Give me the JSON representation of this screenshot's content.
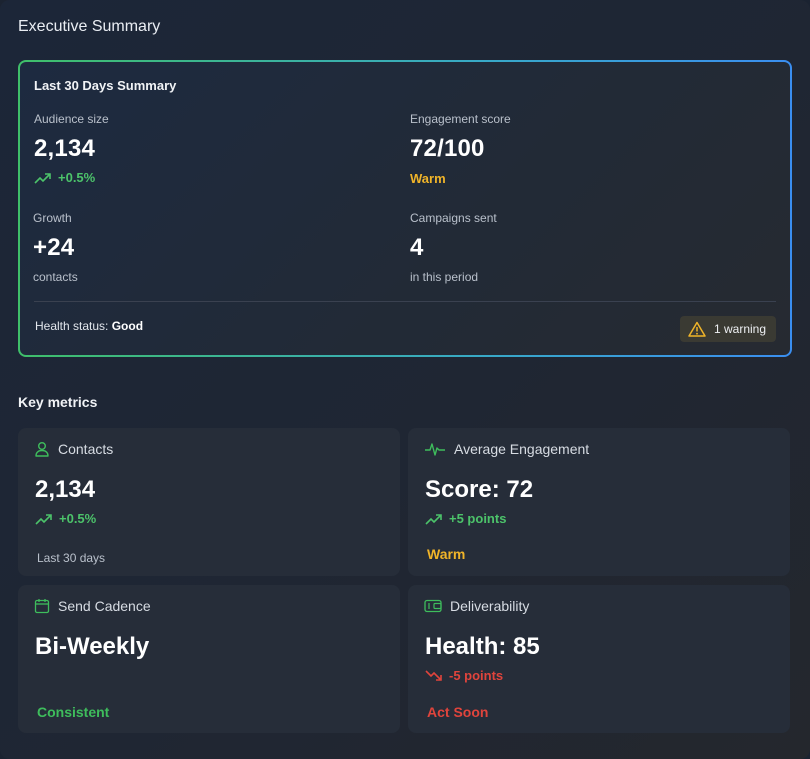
{
  "page_title": "Executive Summary",
  "summary": {
    "title": "Last 30 Days Summary",
    "audience": {
      "label": "Audience size",
      "value": "2,134",
      "trend": "+0.5%"
    },
    "engagement": {
      "label": "Engagement score",
      "value": "72/100",
      "status": "Warm"
    },
    "growth": {
      "label": "Growth",
      "value": "+24",
      "sub": "contacts"
    },
    "campaigns": {
      "label": "Campaigns sent",
      "value": "4",
      "sub": "in this period"
    },
    "health_label": "Health status:",
    "health_value": "Good",
    "warning_badge": "1 warning"
  },
  "key_metrics": {
    "title": "Key metrics",
    "contacts": {
      "title": "Contacts",
      "value": "2,134",
      "trend": "+0.5%",
      "foot": "Last 30 days"
    },
    "engagement": {
      "title": "Average Engagement",
      "value": "Score: 72",
      "trend": "+5 points",
      "status": "Warm"
    },
    "cadence": {
      "title": "Send Cadence",
      "value": "Bi-Weekly",
      "status": "Consistent"
    },
    "deliverability": {
      "title": "Deliverability",
      "value": "Health: 85",
      "trend": "-5 points",
      "status": "Act Soon"
    }
  },
  "colors": {
    "positive": "#3ebd5c",
    "warning": "#f0b429",
    "negative": "#e0443c",
    "border_gradient": [
      "#3fbf6a",
      "#3a8ef0"
    ]
  },
  "icons": {
    "trend_up": "trend-up-icon",
    "trend_down": "trend-down-icon",
    "warning": "warning-triangle-icon",
    "contacts": "user-icon",
    "engagement": "pulse-icon",
    "cadence": "calendar-icon",
    "deliverability": "wallet-icon"
  }
}
